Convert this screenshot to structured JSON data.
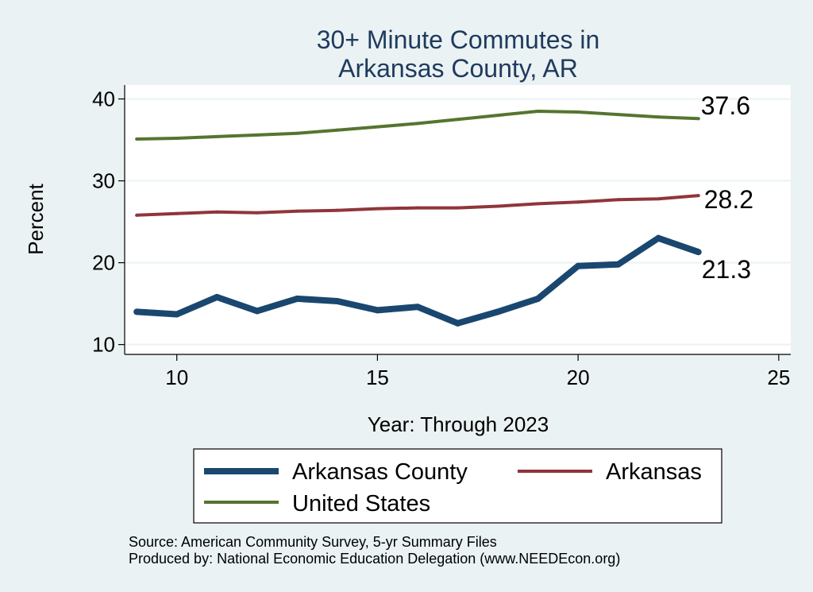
{
  "chart_data": {
    "type": "line",
    "title_lines": [
      "30+ Minute Commutes in",
      "Arkansas County, AR"
    ],
    "xlabel": "Year: Through 2023",
    "ylabel": "Percent",
    "xlim": [
      8.7,
      25.3
    ],
    "ylim": [
      8.8,
      41.7
    ],
    "x_ticks": [
      10,
      15,
      20,
      25
    ],
    "y_ticks": [
      10,
      20,
      30,
      40
    ],
    "grid": true,
    "x": [
      9,
      10,
      11,
      12,
      13,
      14,
      15,
      16,
      17,
      18,
      19,
      20,
      21,
      22,
      23
    ],
    "series": [
      {
        "name": "Arkansas County",
        "color": "#1a476f",
        "width": 8,
        "values": [
          14.0,
          13.7,
          15.8,
          14.1,
          15.6,
          15.3,
          14.2,
          14.6,
          12.6,
          14.0,
          15.6,
          19.6,
          19.8,
          23.0,
          21.3
        ],
        "end_label": "21.3"
      },
      {
        "name": "Arkansas",
        "color": "#90353b",
        "width": 4,
        "values": [
          25.8,
          26.0,
          26.2,
          26.1,
          26.3,
          26.4,
          26.6,
          26.7,
          26.7,
          26.9,
          27.2,
          27.4,
          27.7,
          27.8,
          28.2
        ],
        "end_label": "28.2"
      },
      {
        "name": "United States",
        "color": "#55752f",
        "width": 4,
        "values": [
          35.1,
          35.2,
          35.4,
          35.6,
          35.8,
          36.2,
          36.6,
          37.0,
          37.5,
          38.0,
          38.5,
          38.4,
          38.1,
          37.8,
          37.6
        ],
        "end_label": "37.6"
      }
    ]
  },
  "notes": [
    "Source: American Community Survey, 5-yr Summary Files",
    "Produced by: National Economic Education Delegation (www.NEEDEcon.org)"
  ]
}
